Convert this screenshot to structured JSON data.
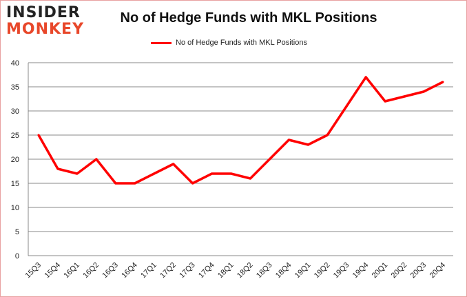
{
  "logo": {
    "line1": "INSIDER",
    "line2": "MONKEY"
  },
  "chart_data": {
    "type": "line",
    "title": "No of Hedge Funds with MKL Positions",
    "categories": [
      "15Q3",
      "15Q4",
      "16Q1",
      "16Q2",
      "16Q3",
      "16Q4",
      "17Q1",
      "17Q2",
      "17Q3",
      "17Q4",
      "18Q1",
      "18Q2",
      "18Q3",
      "18Q4",
      "19Q1",
      "19Q2",
      "19Q3",
      "19Q4",
      "20Q1",
      "20Q2",
      "20Q3",
      "20Q4"
    ],
    "series": [
      {
        "name": "No of Hedge Funds with MKL Positions",
        "values": [
          25,
          18,
          17,
          20,
          15,
          15,
          17,
          19,
          15,
          17,
          17,
          16,
          20,
          24,
          23,
          25,
          31,
          37,
          32,
          33,
          34,
          36
        ],
        "color": "#ff0000"
      }
    ],
    "yticks": [
      0,
      5,
      10,
      15,
      20,
      25,
      30,
      35,
      40
    ],
    "ylim": [
      0,
      40
    ],
    "grid": true,
    "legend": "top-center",
    "xlabel": "",
    "ylabel": ""
  }
}
